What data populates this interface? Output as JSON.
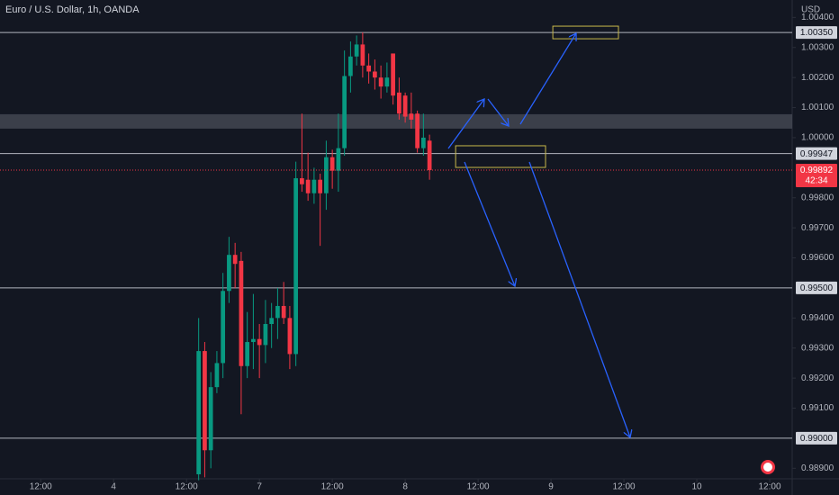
{
  "chart_data": {
    "type": "candlestick",
    "title": "Euro / U.S. Dollar, 1h, OANDA",
    "y_axis_label": "USD",
    "colors": {
      "up": "#089981",
      "down": "#f23645"
    },
    "x": [
      38,
      39,
      40,
      41,
      42,
      43,
      44,
      45,
      46,
      47,
      48,
      49,
      50,
      51,
      52,
      53,
      54,
      55,
      56,
      57,
      58,
      59,
      60,
      61,
      62,
      63,
      64,
      65,
      66,
      67,
      68,
      69,
      70,
      71,
      72,
      73,
      74,
      75,
      76
    ],
    "open": [
      0.9888,
      0.9929,
      0.9896,
      0.9917,
      0.9925,
      0.9949,
      0.9961,
      0.9959,
      0.9924,
      0.9932,
      0.9933,
      0.9931,
      0.9938,
      0.994,
      0.9944,
      0.994,
      0.9928,
      0.99865,
      0.9986,
      0.99815,
      0.9986,
      0.99815,
      0.99935,
      0.9989,
      0.99965,
      1.00205,
      1.0027,
      1.0031,
      1.0024,
      1.0022,
      1.002,
      1.0017,
      1.0028,
      1.0015,
      1.0014,
      1.0008,
      1.0008,
      0.99965,
      0.9999
    ],
    "high": [
      0.994,
      0.9932,
      0.9922,
      0.9929,
      0.9955,
      0.9967,
      0.9965,
      0.9962,
      0.9942,
      0.9948,
      0.9938,
      0.9946,
      0.9945,
      0.995,
      0.9952,
      0.9944,
      0.9992,
      1.0008,
      0.9995,
      0.999,
      0.9988,
      0.9999,
      0.9996,
      1.0008,
      1.0029,
      1.0032,
      1.0034,
      1.0035,
      1.0028,
      1.0026,
      1.0024,
      1.0025,
      1.0028,
      1.002,
      1.0015,
      1.0015,
      1.0009,
      1.0008,
      1.0001
    ],
    "low": [
      0.9886,
      0.9887,
      0.989,
      0.9915,
      0.992,
      0.9945,
      0.995,
      0.9908,
      0.992,
      0.9923,
      0.992,
      0.9925,
      0.993,
      0.9933,
      0.9938,
      0.9923,
      0.9924,
      0.9982,
      0.9979,
      0.9978,
      0.9964,
      0.9976,
      0.9983,
      0.9982,
      0.9994,
      1.0015,
      1.0024,
      1.002,
      1.0018,
      1.0016,
      1.0013,
      1.0015,
      1.0011,
      1.0006,
      1.0005,
      1.0003,
      0.9995,
      0.9994,
      0.9986
    ],
    "close": [
      0.9929,
      0.9896,
      0.9917,
      0.9925,
      0.9949,
      0.9961,
      0.9958,
      0.9924,
      0.9932,
      0.9933,
      0.9931,
      0.9938,
      0.994,
      0.9944,
      0.994,
      0.9928,
      0.99865,
      0.99845,
      0.99815,
      0.9986,
      0.99815,
      0.99935,
      0.9989,
      0.99965,
      1.00205,
      1.0027,
      1.0031,
      1.0024,
      1.0022,
      1.002,
      1.0017,
      1.002,
      1.0014,
      1.0008,
      1.0007,
      1.0006,
      0.99965,
      1.0,
      0.99892
    ],
    "xlim": [
      5.3,
      135.7
    ],
    "xticks": [
      {
        "value": 12,
        "label": "12:00"
      },
      {
        "value": 24,
        "label": "4"
      },
      {
        "value": 36,
        "label": "12:00"
      },
      {
        "value": 48,
        "label": "7"
      },
      {
        "value": 60,
        "label": "12:00"
      },
      {
        "value": 72,
        "label": "8"
      },
      {
        "value": 84,
        "label": "12:00"
      },
      {
        "value": 96,
        "label": "9"
      },
      {
        "value": 108,
        "label": "12:00"
      },
      {
        "value": 120,
        "label": "10"
      },
      {
        "value": 132,
        "label": "12:00"
      }
    ],
    "ylim": [
      0.98865,
      1.00458
    ],
    "yticks": [
      {
        "value": 1.004,
        "label": "1.00400"
      },
      {
        "value": 1.003,
        "label": "1.00300"
      },
      {
        "value": 1.002,
        "label": "1.00200"
      },
      {
        "value": 1.001,
        "label": "1.00100"
      },
      {
        "value": 1.0,
        "label": "1.00000"
      },
      {
        "value": 0.998,
        "label": "0.99800"
      },
      {
        "value": 0.997,
        "label": "0.99700"
      },
      {
        "value": 0.996,
        "label": "0.99600"
      },
      {
        "value": 0.994,
        "label": "0.99400"
      },
      {
        "value": 0.993,
        "label": "0.99300"
      },
      {
        "value": 0.992,
        "label": "0.99200"
      },
      {
        "value": 0.991,
        "label": "0.99100"
      },
      {
        "value": 0.989,
        "label": "0.98900"
      }
    ],
    "levels": [
      {
        "value": 1.0035,
        "label": "1.00350"
      },
      {
        "value": 0.99947,
        "label": "0.99947"
      },
      {
        "value": 0.995,
        "label": "0.99500"
      },
      {
        "value": 0.99,
        "label": "0.99000"
      }
    ],
    "last_price": {
      "value": 0.99892,
      "label": "0.99892",
      "countdown": "42:34"
    },
    "zone": [
      1.0003,
      1.00078
    ],
    "boxes": [
      {
        "x": [
          96.3,
          107.1
        ],
        "y": [
          1.00329,
          1.00371
        ]
      },
      {
        "x": [
          80.3,
          95.1
        ],
        "y": [
          0.99901,
          0.99973
        ]
      }
    ]
  }
}
